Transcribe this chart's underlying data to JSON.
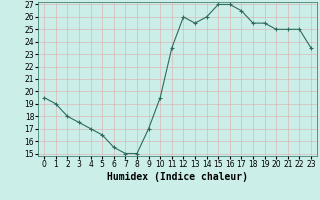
{
  "x": [
    0,
    1,
    2,
    3,
    4,
    5,
    6,
    7,
    8,
    9,
    10,
    11,
    12,
    13,
    14,
    15,
    16,
    17,
    18,
    19,
    20,
    21,
    22,
    23
  ],
  "y": [
    19.5,
    19.0,
    18.0,
    17.5,
    17.0,
    16.5,
    15.5,
    15.0,
    15.0,
    17.0,
    19.5,
    23.5,
    26.0,
    25.5,
    26.0,
    27.0,
    27.0,
    26.5,
    25.5,
    25.5,
    25.0,
    25.0,
    25.0,
    23.5
  ],
  "xlabel": "Humidex (Indice chaleur)",
  "ylim": [
    15,
    27
  ],
  "xlim": [
    -0.5,
    23.5
  ],
  "bg_color": "#cceee8",
  "grid_color": "#d9b8b8",
  "line_color": "#2d6b5e",
  "marker_color": "#2d6b5e",
  "tick_fontsize": 5.5,
  "xlabel_fontsize": 7,
  "yticks": [
    15,
    16,
    17,
    18,
    19,
    20,
    21,
    22,
    23,
    24,
    25,
    26,
    27
  ],
  "xticks": [
    0,
    1,
    2,
    3,
    4,
    5,
    6,
    7,
    8,
    9,
    10,
    11,
    12,
    13,
    14,
    15,
    16,
    17,
    18,
    19,
    20,
    21,
    22,
    23
  ]
}
